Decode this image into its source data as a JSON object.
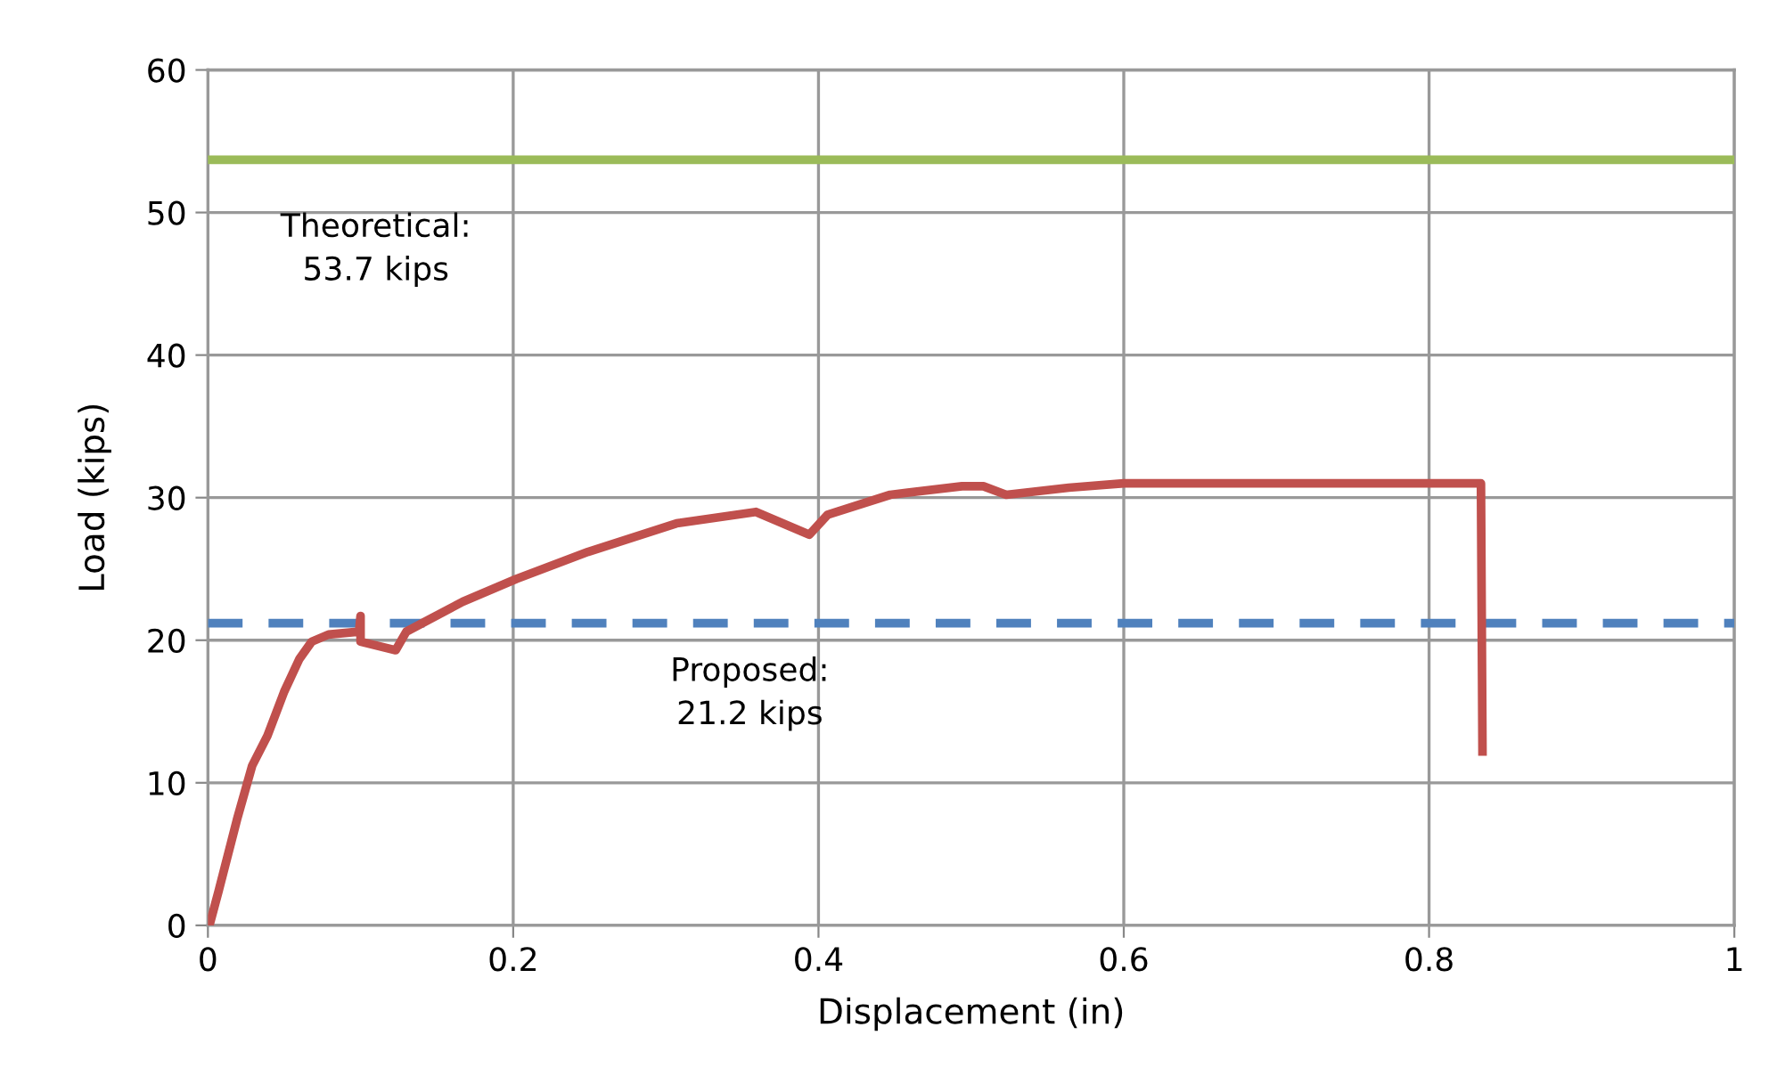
{
  "chart_data": {
    "type": "line",
    "xlabel": "Displacement (in)",
    "ylabel": "Load (kips)",
    "xlim": [
      0,
      1
    ],
    "xticks": [
      0,
      0.2,
      0.4,
      0.6,
      0.8,
      1
    ],
    "ylim": [
      0,
      60
    ],
    "yticks": [
      0,
      10,
      20,
      30,
      40,
      50,
      60
    ],
    "grid": true,
    "line_style": "solid",
    "marker": "none",
    "series": [
      {
        "color": "#c0504d",
        "x": [
          0.001,
          0.007,
          0.019,
          0.029,
          0.039,
          0.05,
          0.06,
          0.068,
          0.079,
          0.099,
          0.1,
          0.1,
          0.123,
          0.13,
          0.144,
          0.167,
          0.202,
          0.249,
          0.307,
          0.359,
          0.394,
          0.406,
          0.447,
          0.494,
          0.508,
          0.523,
          0.564,
          0.6,
          0.834,
          0.835
        ],
        "values": [
          0,
          2.4,
          7.4,
          11.2,
          13.3,
          16.4,
          18.7,
          19.9,
          20.4,
          20.6,
          21.7,
          19.9,
          19.3,
          20.6,
          21.4,
          22.7,
          24.3,
          26.2,
          28.2,
          29.0,
          27.4,
          28.8,
          30.2,
          30.8,
          30.8,
          30.2,
          30.7,
          31.0,
          31.0,
          12.2
        ]
      }
    ],
    "ref_lines": [
      {
        "axis": "y",
        "value": 53.7,
        "label": "Theoretical:\n53.7 kips",
        "color": "#9bbb59",
        "line_style": "solid"
      },
      {
        "axis": "y",
        "value": 21.2,
        "label": "Proposed:\n21.2 kips",
        "color": "#4f81bd",
        "line_style": "dashed"
      }
    ]
  }
}
